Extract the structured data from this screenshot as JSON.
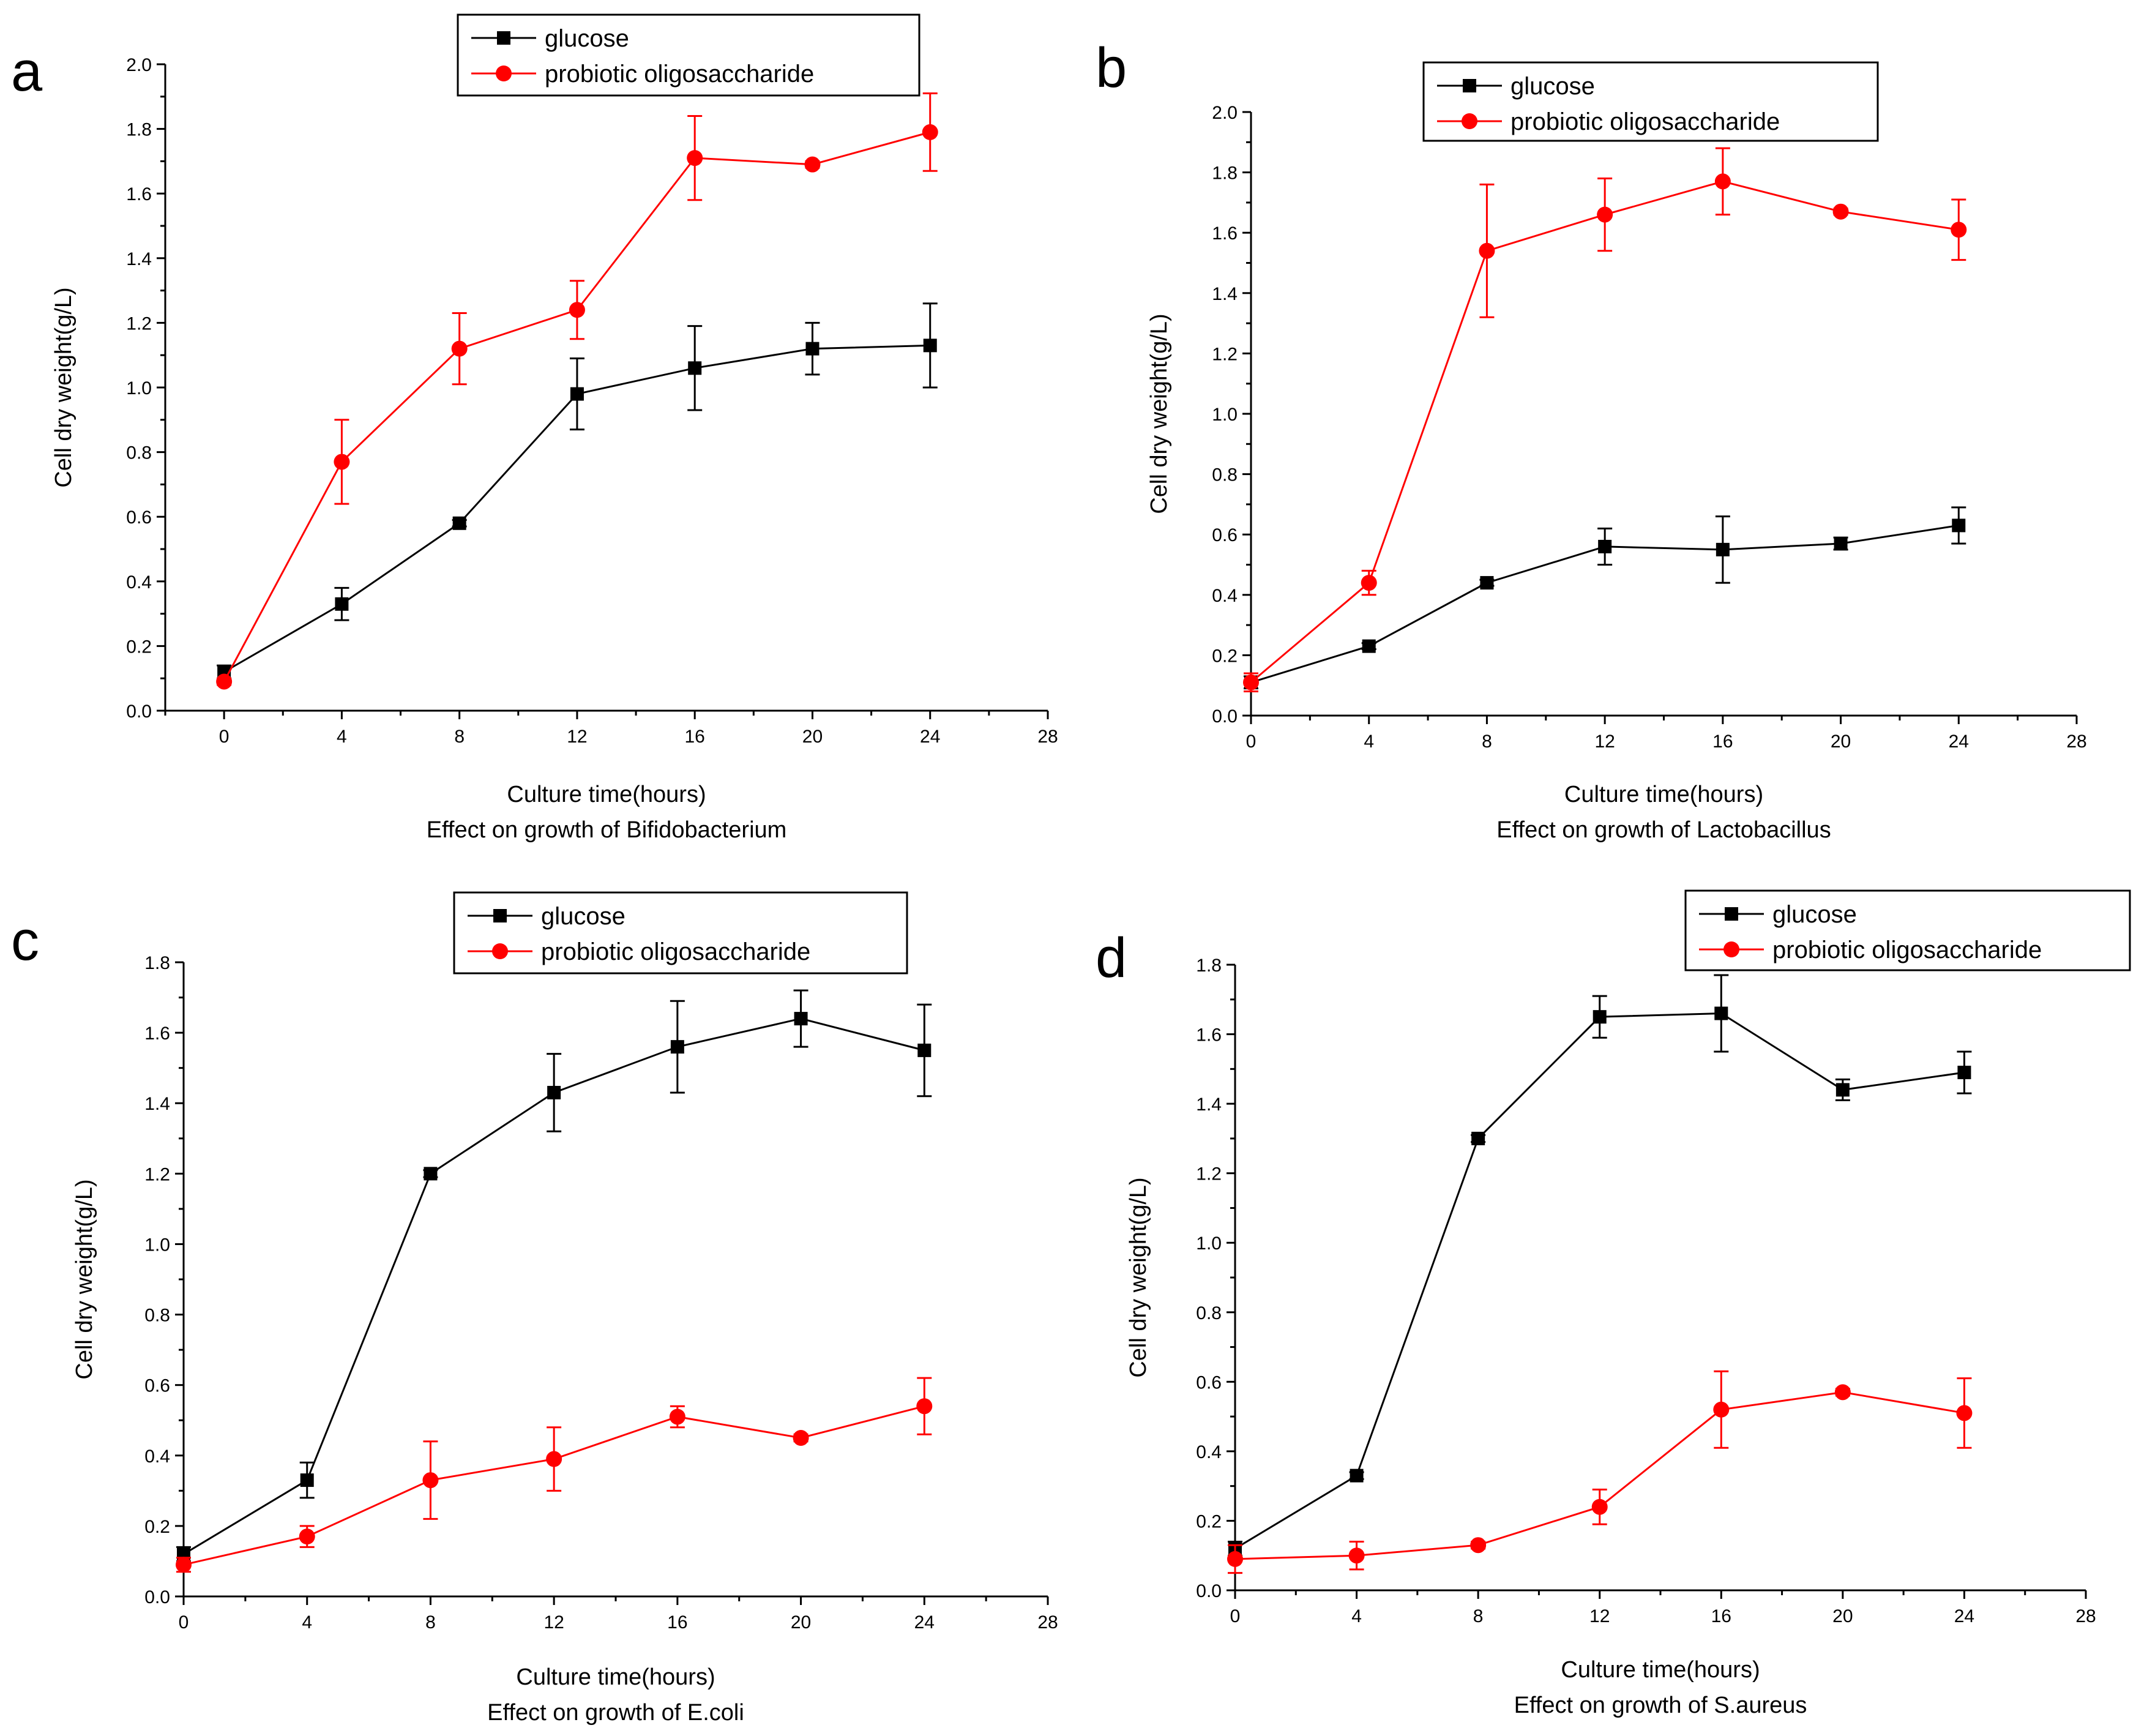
{
  "figure": {
    "panels_order": [
      "a",
      "b",
      "c",
      "d"
    ]
  },
  "chart_data": [
    {
      "type": "line",
      "panel_label": "a",
      "caption": "Effect on growth of Bifidobacterium",
      "xlabel": "Culture time(hours)",
      "ylabel": "Cell dry weight(g/L)",
      "xlim": [
        -2,
        28
      ],
      "ylim": [
        0,
        2.0
      ],
      "x_ticks": [
        0,
        4,
        8,
        12,
        16,
        20,
        24,
        28
      ],
      "y_ticks": [
        0.0,
        0.2,
        0.4,
        0.6,
        0.8,
        1.0,
        1.2,
        1.4,
        1.6,
        1.8,
        2.0
      ],
      "y_decimals": 1,
      "legend_position": "top-center",
      "x": [
        0,
        4,
        8,
        12,
        16,
        20,
        24
      ],
      "series": [
        {
          "name": "glucose",
          "color": "#000000",
          "marker": "square",
          "values": [
            0.12,
            0.33,
            0.58,
            0.98,
            1.06,
            1.12,
            1.13
          ],
          "errors": [
            0.02,
            0.05,
            0.01,
            0.11,
            0.13,
            0.08,
            0.13
          ]
        },
        {
          "name": "probiotic oligosaccharide",
          "color": "#ff0000",
          "marker": "circle",
          "values": [
            0.09,
            0.77,
            1.12,
            1.24,
            1.71,
            1.69,
            1.79
          ],
          "errors": [
            0.01,
            0.13,
            0.11,
            0.09,
            0.13,
            0.01,
            0.12
          ]
        }
      ]
    },
    {
      "type": "line",
      "panel_label": "b",
      "caption": "Effect on growth of Lactobacillus",
      "xlabel": "Culture time(hours)",
      "ylabel": "Cell dry weight(g/L)",
      "xlim": [
        0,
        28
      ],
      "ylim": [
        0,
        2.0
      ],
      "x_ticks": [
        0,
        4,
        8,
        12,
        16,
        20,
        24,
        28
      ],
      "y_ticks": [
        0.0,
        0.2,
        0.4,
        0.6,
        0.8,
        1.0,
        1.2,
        1.4,
        1.6,
        1.8,
        2.0
      ],
      "y_decimals": 1,
      "legend_position": "top-center",
      "x": [
        0,
        4,
        8,
        12,
        16,
        20,
        24
      ],
      "series": [
        {
          "name": "glucose",
          "color": "#000000",
          "marker": "square",
          "values": [
            0.11,
            0.23,
            0.44,
            0.56,
            0.55,
            0.57,
            0.63
          ],
          "errors": [
            0.02,
            0.01,
            0.01,
            0.06,
            0.11,
            0.02,
            0.06
          ]
        },
        {
          "name": "probiotic oligosaccharide",
          "color": "#ff0000",
          "marker": "circle",
          "values": [
            0.11,
            0.44,
            1.54,
            1.66,
            1.77,
            1.67,
            1.61
          ],
          "errors": [
            0.03,
            0.04,
            0.22,
            0.12,
            0.11,
            0.01,
            0.1
          ]
        }
      ]
    },
    {
      "type": "line",
      "panel_label": "c",
      "caption": "Effect on growth of E.coli",
      "xlabel": "Culture time(hours)",
      "ylabel": "Cell dry weight(g/L)",
      "xlim": [
        0,
        28
      ],
      "ylim": [
        0,
        1.8
      ],
      "x_ticks": [
        0,
        4,
        8,
        12,
        16,
        20,
        24,
        28
      ],
      "y_ticks": [
        0.0,
        0.2,
        0.4,
        0.6,
        0.8,
        1.0,
        1.2,
        1.4,
        1.6,
        1.8
      ],
      "y_decimals": 1,
      "legend_position": "top-center",
      "x": [
        0,
        4,
        8,
        12,
        16,
        20,
        24
      ],
      "series": [
        {
          "name": "glucose",
          "color": "#000000",
          "marker": "square",
          "values": [
            0.12,
            0.33,
            1.2,
            1.43,
            1.56,
            1.64,
            1.55
          ],
          "errors": [
            0.02,
            0.05,
            0.01,
            0.11,
            0.13,
            0.08,
            0.13
          ]
        },
        {
          "name": "probiotic oligosaccharide",
          "color": "#ff0000",
          "marker": "circle",
          "values": [
            0.09,
            0.17,
            0.33,
            0.39,
            0.51,
            0.45,
            0.54
          ],
          "errors": [
            0.02,
            0.03,
            0.11,
            0.09,
            0.03,
            0.01,
            0.08
          ]
        }
      ]
    },
    {
      "type": "line",
      "panel_label": "d",
      "caption": "Effect on growth of S.aureus",
      "xlabel": "Culture time(hours)",
      "ylabel": "Cell dry weight(g/L)",
      "xlim": [
        0,
        28
      ],
      "ylim": [
        0,
        1.8
      ],
      "x_ticks": [
        0,
        4,
        8,
        12,
        16,
        20,
        24,
        28
      ],
      "y_ticks": [
        0.0,
        0.2,
        0.4,
        0.6,
        0.8,
        1.0,
        1.2,
        1.4,
        1.6,
        1.8
      ],
      "y_decimals": 1,
      "legend_position": "top-right",
      "x": [
        0,
        4,
        8,
        12,
        16,
        20,
        24
      ],
      "series": [
        {
          "name": "glucose",
          "color": "#000000",
          "marker": "square",
          "values": [
            0.12,
            0.33,
            1.3,
            1.65,
            1.66,
            1.44,
            1.49
          ],
          "errors": [
            0.02,
            0.01,
            0.01,
            0.06,
            0.11,
            0.03,
            0.06
          ]
        },
        {
          "name": "probiotic oligosaccharide",
          "color": "#ff0000",
          "marker": "circle",
          "values": [
            0.09,
            0.1,
            0.13,
            0.24,
            0.52,
            0.57,
            0.51
          ],
          "errors": [
            0.04,
            0.04,
            0.01,
            0.05,
            0.11,
            0.01,
            0.1
          ]
        }
      ]
    }
  ]
}
